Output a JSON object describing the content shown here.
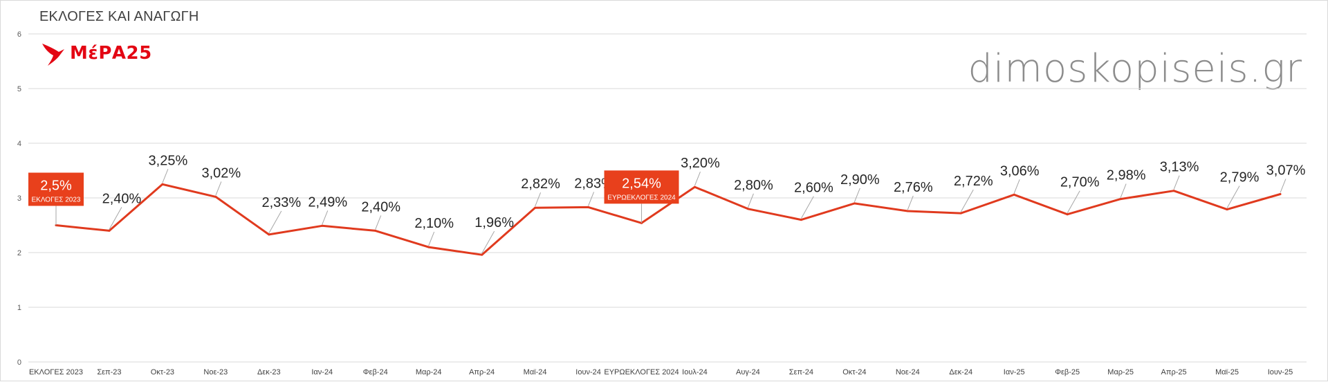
{
  "title": "ΕΚΛΟΓΕΣ ΚΑΙ ΑΝΑΓΩΓΗ",
  "logo_text": "ΜέΡΑ25",
  "watermark": "dimoskopiseis.gr",
  "colors": {
    "line": "#e03a1e",
    "callout": "#e8401c",
    "grid": "#d9d9d9",
    "text": "#404040",
    "logo": "#e30613"
  },
  "chart_data": {
    "type": "line",
    "title": "ΕΚΛΟΓΕΣ ΚΑΙ ΑΝΑΓΩΓΗ",
    "xlabel": "",
    "ylabel": "",
    "ylim": [
      0,
      6
    ],
    "yticks": [
      0,
      1,
      2,
      3,
      4,
      5,
      6
    ],
    "grid": true,
    "legend": "none",
    "categories": [
      "ΕΚΛΟΓΕΣ 2023",
      "Σεπ-23",
      "Οκτ-23",
      "Νοε-23",
      "Δεκ-23",
      "Ιαν-24",
      "Φεβ-24",
      "Μαρ-24",
      "Απρ-24",
      "Μαϊ-24",
      "Ιουν-24",
      "ΕΥΡΩΕΚΛΟΓΕΣ 2024",
      "Ιουλ-24",
      "Αυγ-24",
      "Σεπ-24",
      "Οκτ-24",
      "Νοε-24",
      "Δεκ-24",
      "Ιαν-25",
      "Φεβ-25",
      "Μαρ-25",
      "Απρ-25",
      "Μαϊ-25",
      "Ιουν-25"
    ],
    "values": [
      2.5,
      2.4,
      3.25,
      3.02,
      2.33,
      2.49,
      2.4,
      2.1,
      1.96,
      2.82,
      2.83,
      2.54,
      3.2,
      2.8,
      2.6,
      2.9,
      2.76,
      2.72,
      3.06,
      2.7,
      2.98,
      3.13,
      2.79,
      3.07
    ],
    "data_labels": [
      "2,5%",
      "2,40%",
      "3,25%",
      "3,02%",
      "2,33%",
      "2,49%",
      "2,40%",
      "2,10%",
      "1,96%",
      "2,82%",
      "2,83%",
      "2,54%",
      "3,20%",
      "2,80%",
      "2,60%",
      "2,90%",
      "2,76%",
      "2,72%",
      "3,06%",
      "2,70%",
      "2,98%",
      "3,13%",
      "2,79%",
      "3,07%"
    ],
    "callouts": [
      {
        "index": 0,
        "label": "2,5%",
        "sublabel": "ΕΚΛΟΓΕΣ 2023"
      },
      {
        "index": 11,
        "label": "2,54%",
        "sublabel": "ΕΥΡΩΕΚΛΟΓΕΣ 2024"
      }
    ]
  }
}
